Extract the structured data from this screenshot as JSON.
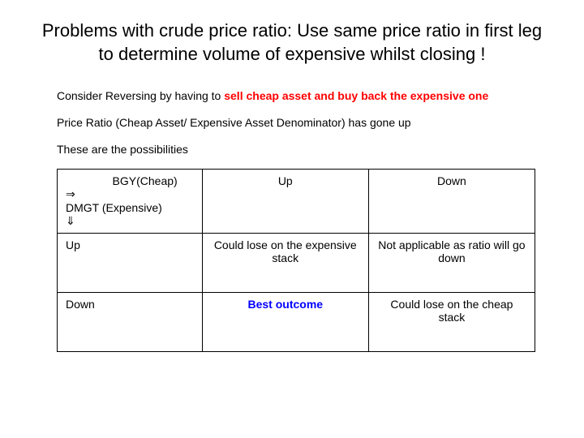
{
  "title": "Problems with crude price ratio:  Use same price ratio in first leg to determine volume of expensive whilst closing !",
  "para1_a": "Consider Reversing by having to ",
  "para1_b": "sell cheap asset and buy back the expensive one",
  "para2": "Price Ratio (Cheap Asset/  Expensive Asset Denominator) has gone up",
  "para3": "These are the possibilities",
  "table": {
    "header_corner_line1": "BGY(Cheap)",
    "header_corner_line2": "DMGT (Expensive)",
    "col_up": "Up",
    "col_down": "Down",
    "row_up": "Up",
    "row_down": "Down",
    "cell_up_up": "Could lose on the expensive stack",
    "cell_up_down": "Not applicable as ratio will go down",
    "cell_down_up": "Best outcome",
    "cell_down_down": "Could lose on the cheap stack",
    "arrow_right": "⇒",
    "arrow_down": "⇓"
  },
  "colors": {
    "title": "#000000",
    "body": "#000000",
    "emphasis_red": "#ff0000",
    "emphasis_blue": "#0000ff",
    "border": "#000000",
    "background": "#ffffff"
  },
  "fonts": {
    "title_family": "Arial",
    "title_size_pt": 22,
    "body_family": "Century Gothic",
    "body_size_pt": 14
  }
}
